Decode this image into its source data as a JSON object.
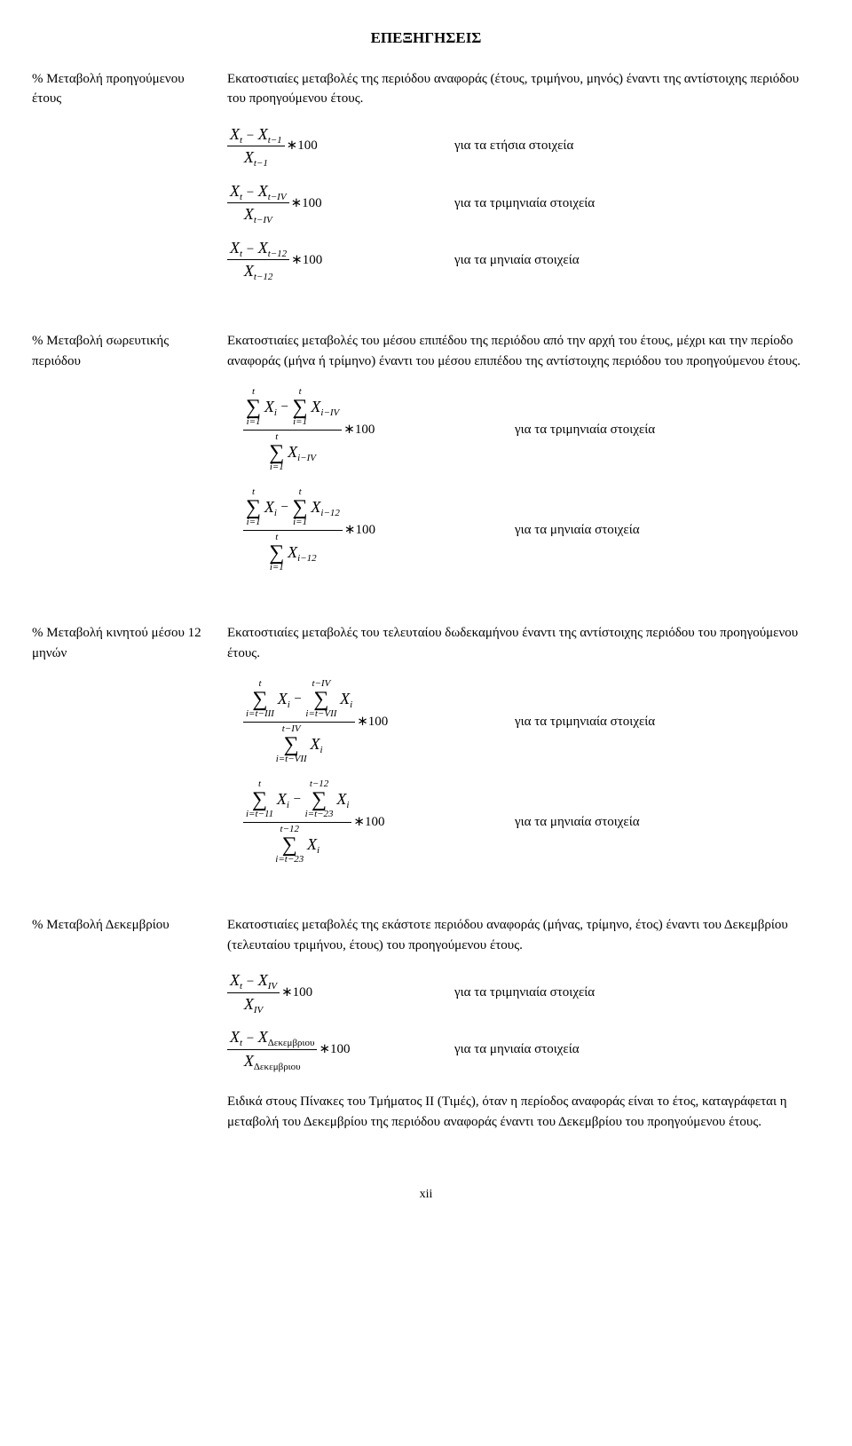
{
  "title": "ΕΠΕΞΗΓΗΣΕΙΣ",
  "sections": [
    {
      "label": "% Μεταβολή προηγούμενου έτους",
      "desc": "Εκατοστιαίες μεταβολές της περιόδου αναφοράς (έτους, τριμήνου, μηνός) έναντι της αντίστοιχης περιόδου του προηγούμενου έτους.",
      "formulas": [
        {
          "label": "για τα ετήσια στοιχεία"
        },
        {
          "label": "για τα τριμηνιαία στοιχεία"
        },
        {
          "label": "για τα μηνιαία στοιχεία"
        }
      ]
    },
    {
      "label": "% Μεταβολή σωρευτικής περιόδου",
      "desc": "Εκατοστιαίες μεταβολές του μέσου επιπέδου της περιόδου από την αρχή του έτους, μέχρι και την περίοδο αναφοράς (μήνα ή τρίμηνο) έναντι του μέσου επιπέδου της αντίστοιχης περιόδου του προηγούμενου έτους.",
      "formulas": [
        {
          "label": "για τα τριμηνιαία στοιχεία"
        },
        {
          "label": "για τα μηνιαία στοιχεία"
        }
      ]
    },
    {
      "label": "% Μεταβολή κινητού μέσου 12 μηνών",
      "desc": "Εκατοστιαίες μεταβολές του τελευταίου δωδεκαμήνου έναντι της αντίστοιχης περιόδου του προηγούμενου έτους.",
      "formulas": [
        {
          "label": "για τα τριμηνιαία στοιχεία"
        },
        {
          "label": "για τα μηνιαία στοιχεία"
        }
      ]
    },
    {
      "label": "% Μεταβολή Δεκεμβρίου",
      "desc": "Εκατοστιαίες μεταβολές της εκάστοτε περιόδου αναφοράς (μήνας, τρίμηνο, έτος) έναντι του Δεκεμβρίου (τελευταίου τριμήνου, έτους) του προηγούμενου έτους.",
      "formulas": [
        {
          "label": "για τα τριμηνιαία στοιχεία"
        },
        {
          "label": "για τα μηνιαία στοιχεία"
        }
      ],
      "footnote": "Ειδικά στους Πίνακες  του Τμήματος ΙΙ (Τιμές), όταν η περίοδος αναφοράς είναι το έτος, καταγράφεται η μεταβολή του Δεκεμβρίου της περιόδου αναφοράς έναντι του Δεκεμβρίου του προηγούμενου έτους."
    }
  ],
  "page_number": "xii",
  "mult": "∗100",
  "subscripts": {
    "dec": "Δεκεμβριου"
  }
}
